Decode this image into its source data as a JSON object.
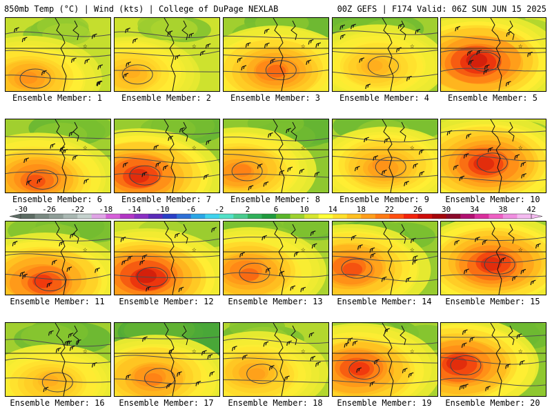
{
  "header": {
    "left": "850mb Temp (°C) | Wind (kts) | College of DuPage NEXLAB",
    "right": "00Z GEFS | F174 Valid: 06Z SUN JUN 15 2025"
  },
  "members": [
    {
      "label": "Ensemble Member: 1",
      "heat": 0.55,
      "green": 0.25
    },
    {
      "label": "Ensemble Member: 2",
      "heat": 0.45,
      "green": 0.2
    },
    {
      "label": "Ensemble Member: 3",
      "heat": 0.65,
      "green": 0.45
    },
    {
      "label": "Ensemble Member: 4",
      "heat": 0.45,
      "green": 0.45
    },
    {
      "label": "Ensemble Member: 5",
      "heat": 0.85,
      "green": 0.1
    },
    {
      "label": "Ensemble Member: 6",
      "heat": 0.7,
      "green": 0.45
    },
    {
      "label": "Ensemble Member: 7",
      "heat": 0.8,
      "green": 0.5
    },
    {
      "label": "Ensemble Member: 8",
      "heat": 0.6,
      "green": 0.55
    },
    {
      "label": "Ensemble Member: 9",
      "heat": 0.55,
      "green": 0.4
    },
    {
      "label": "Ensemble Member: 10",
      "heat": 0.8,
      "green": 0.15
    },
    {
      "label": "Ensemble Member: 11",
      "heat": 0.75,
      "green": 0.4
    },
    {
      "label": "Ensemble Member: 12",
      "heat": 0.85,
      "green": 0.2
    },
    {
      "label": "Ensemble Member: 13",
      "heat": 0.65,
      "green": 0.4
    },
    {
      "label": "Ensemble Member: 14",
      "heat": 0.7,
      "green": 0.5
    },
    {
      "label": "Ensemble Member: 15",
      "heat": 0.8,
      "green": 0.45
    },
    {
      "label": "Ensemble Member: 16",
      "heat": 0.45,
      "green": 0.45
    },
    {
      "label": "Ensemble Member: 17",
      "heat": 0.6,
      "green": 0.8
    },
    {
      "label": "Ensemble Member: 18",
      "heat": 0.5,
      "green": 0.35
    },
    {
      "label": "Ensemble Member: 19",
      "heat": 0.75,
      "green": 0.4
    },
    {
      "label": "Ensemble Member: 20",
      "heat": 0.8,
      "green": 0.55
    }
  ],
  "colorbar": {
    "tick_labels": [
      "-30",
      "-26",
      "-22",
      "-18",
      "-14",
      "-10",
      "-6",
      "-2",
      "2",
      "6",
      "10",
      "14",
      "18",
      "22",
      "26",
      "30",
      "34",
      "38",
      "42"
    ],
    "colors": [
      "#5c6b63",
      "#7a8a82",
      "#8e9d97",
      "#a9b7b2",
      "#c4d1cd",
      "#e0a4e6",
      "#d65fd9",
      "#b236c4",
      "#8a2fc2",
      "#5a2bb8",
      "#2a3fc6",
      "#2d6fd6",
      "#2aa6e6",
      "#3fd3ee",
      "#52e1c7",
      "#49cc8f",
      "#2fb05a",
      "#1f9a3d",
      "#5ab52a",
      "#9cd12e",
      "#d6e62f",
      "#ffff38",
      "#ffe02a",
      "#ffc021",
      "#ff9e1a",
      "#ff7a14",
      "#ff4f10",
      "#f2230c",
      "#cc0d0a",
      "#a3060a",
      "#8a0a2a",
      "#b01070",
      "#d92e9c",
      "#ee5fc3",
      "#f08ee0",
      "#f4baf0"
    ]
  }
}
